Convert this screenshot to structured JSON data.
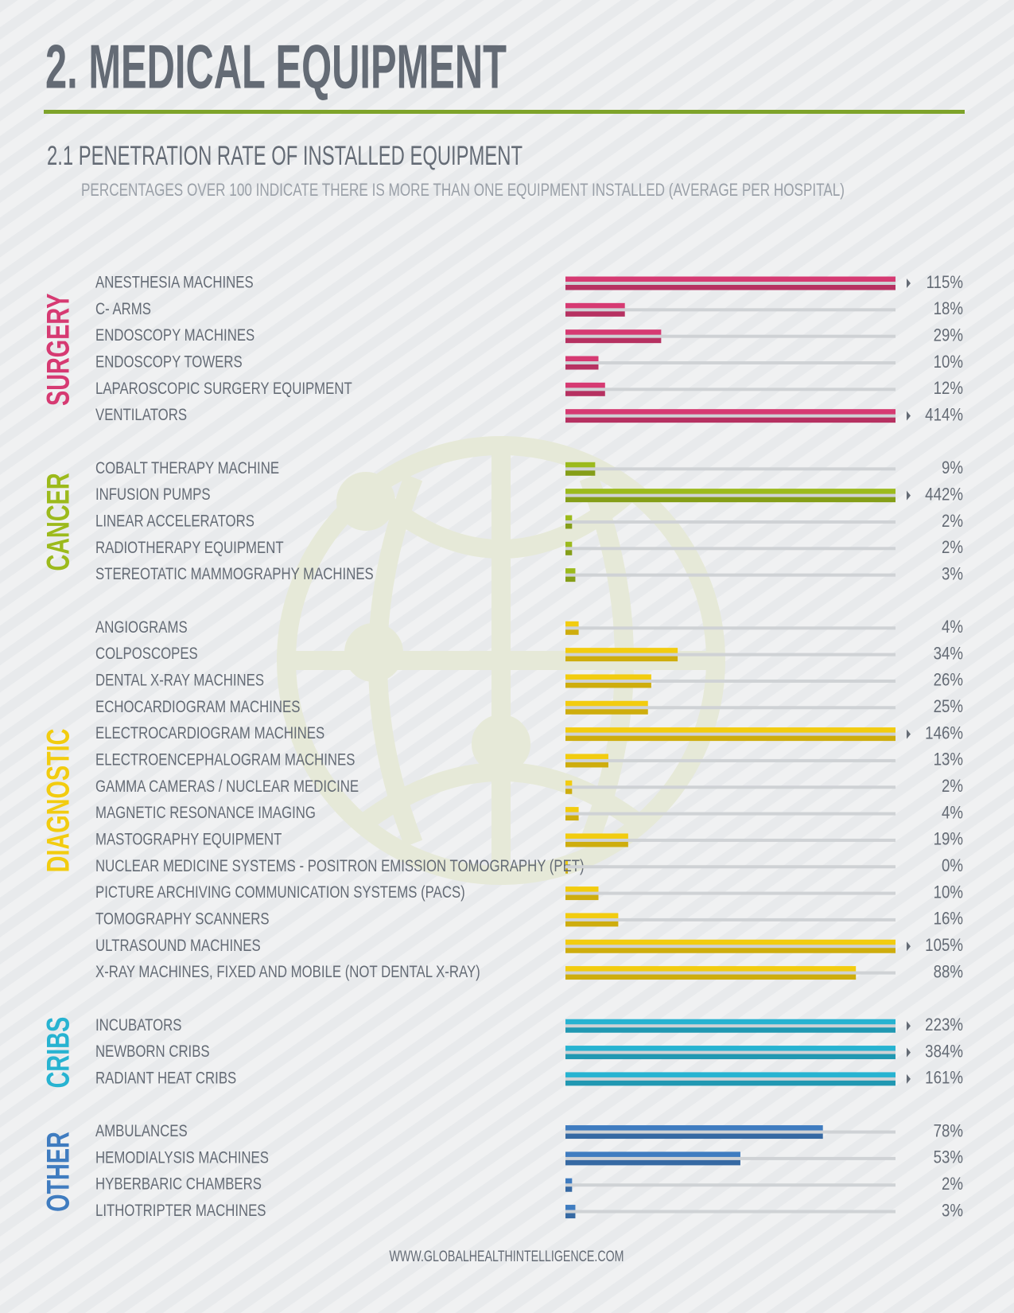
{
  "header": {
    "title": "2. MEDICAL EQUIPMENT"
  },
  "chart_data": {
    "type": "bar",
    "title": "2.1 PENETRATION RATE OF INSTALLED EQUIPMENT",
    "subtitle": "PERCENTAGES OVER 100 INDICATE THERE IS MORE THAN ONE EQUIPMENT INSTALLED (AVERAGE PER HOSPITAL)",
    "xlim": [
      0,
      100
    ],
    "groups": [
      {
        "name": "SURGERY",
        "color": "#d63a72",
        "categories": [
          "ANESTHESIA MACHINES",
          "C- ARMS",
          "ENDOSCOPY MACHINES",
          "ENDOSCOPY TOWERS",
          "LAPAROSCOPIC SURGERY EQUIPMENT",
          "VENTILATORS"
        ],
        "values": [
          115,
          18,
          29,
          10,
          12,
          414
        ],
        "value_labels": [
          "115%",
          "18%",
          "29%",
          "10%",
          "12%",
          "414%"
        ]
      },
      {
        "name": "CANCER",
        "color": "#9cba1c",
        "categories": [
          "COBALT THERAPY MACHINE",
          "INFUSION PUMPS",
          "LINEAR ACCELERATORS",
          "RADIOTHERAPY EQUIPMENT",
          "STEREOTATIC MAMMOGRAPHY MACHINES"
        ],
        "values": [
          9,
          442,
          2,
          2,
          3
        ],
        "value_labels": [
          "9%",
          "442%",
          "2%",
          "2%",
          "3%"
        ]
      },
      {
        "name": "DIAGNOSTIC",
        "color": "#f2cc0f",
        "categories": [
          "ANGIOGRAMS",
          "COLPOSCOPES",
          "DENTAL X-RAY MACHINES",
          "ECHOCARDIOGRAM MACHINES",
          "ELECTROCARDIOGRAM MACHINES",
          "ELECTROENCEPHALOGRAM MACHINES",
          "GAMMA CAMERAS / NUCLEAR MEDICINE",
          "MAGNETIC RESONANCE IMAGING",
          "MASTOGRAPHY EQUIPMENT",
          "NUCLEAR MEDICINE SYSTEMS - POSITRON EMISSION TOMOGRAPHY (PET)",
          "PICTURE ARCHIVING COMMUNICATION SYSTEMS (PACS)",
          "TOMOGRAPHY SCANNERS",
          "ULTRASOUND MACHINES",
          "X-RAY MACHINES, FIXED AND MOBILE (NOT DENTAL X-RAY)"
        ],
        "values": [
          4,
          34,
          26,
          25,
          146,
          13,
          2,
          4,
          19,
          0,
          10,
          16,
          105,
          88
        ],
        "value_labels": [
          "4%",
          "34%",
          "26%",
          "25%",
          "146%",
          "13%",
          "2%",
          "4%",
          "19%",
          "0%",
          "10%",
          "16%",
          "105%",
          "88%"
        ]
      },
      {
        "name": "CRIBS",
        "color": "#27b3d1",
        "categories": [
          "INCUBATORS",
          "NEWBORN CRIBS",
          "RADIANT HEAT CRIBS"
        ],
        "values": [
          223,
          384,
          161
        ],
        "value_labels": [
          "223%",
          "384%",
          "161%"
        ]
      },
      {
        "name": "OTHER",
        "color": "#3f7cc0",
        "categories": [
          "AMBULANCES",
          "HEMODIALYSIS MACHINES",
          "HYBERBARIC CHAMBERS",
          "LITHOTRIPTER MACHINES"
        ],
        "values": [
          78,
          53,
          2,
          3
        ],
        "value_labels": [
          "78%",
          "53%",
          "2%",
          "3%"
        ]
      }
    ]
  },
  "footer": "WWW.GLOBALHEALTHINTELLIGENCE.COM"
}
